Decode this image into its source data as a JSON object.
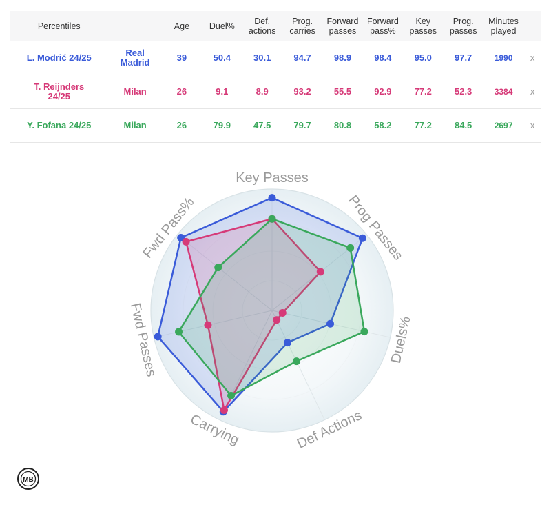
{
  "table": {
    "columns": [
      "Percentiles",
      "",
      "Age",
      "Duel%",
      "Def.\nactions",
      "Prog.\ncarries",
      "Forward\npasses",
      "Forward\npass%",
      "Key\npasses",
      "Prog.\npasses",
      "Minutes\nplayed"
    ],
    "rows": [
      {
        "player": "L. Modrić 24/25",
        "team": "Real\nMadrid",
        "age": "39",
        "duel": "50.4",
        "def_actions": "30.1",
        "prog_carries": "94.7",
        "fwd_passes": "98.9",
        "fwd_pass_pct": "98.4",
        "key_passes": "95.0",
        "prog_passes": "97.7",
        "minutes": "1990",
        "remove": "x",
        "color": "#3a5bd9"
      },
      {
        "player": "T. Reijnders\n24/25",
        "team": "Milan",
        "age": "26",
        "duel": "9.1",
        "def_actions": "8.9",
        "prog_carries": "93.2",
        "fwd_passes": "55.5",
        "fwd_pass_pct": "92.9",
        "key_passes": "77.2",
        "prog_passes": "52.3",
        "minutes": "3384",
        "remove": "x",
        "color": "#d63a78"
      },
      {
        "player": "Y. Fofana 24/25",
        "team": "Milan",
        "age": "26",
        "duel": "79.9",
        "def_actions": "47.5",
        "prog_carries": "79.7",
        "fwd_passes": "80.8",
        "fwd_pass_pct": "58.2",
        "key_passes": "77.2",
        "prog_passes": "84.5",
        "minutes": "2697",
        "remove": "x",
        "color": "#3aa85c"
      }
    ]
  },
  "chart_data": {
    "type": "radar",
    "axes": [
      "Key Passes",
      "Prog Passes",
      "Duels%",
      "Def Actions",
      "Carrying",
      "Fwd Passes",
      "Fwd Pass%"
    ],
    "range": [
      0,
      100
    ],
    "series": [
      {
        "name": "L. Modrić 24/25",
        "color": "#3a5bd9",
        "values": [
          95.0,
          97.7,
          50.4,
          30.1,
          94.7,
          98.9,
          98.4
        ]
      },
      {
        "name": "T. Reijnders 24/25",
        "color": "#d63a78",
        "values": [
          77.2,
          52.3,
          9.1,
          8.9,
          93.2,
          55.5,
          92.9
        ]
      },
      {
        "name": "Y. Fofana 24/25",
        "color": "#3aa85c",
        "values": [
          77.2,
          84.5,
          79.9,
          47.5,
          79.7,
          80.8,
          58.2
        ]
      }
    ]
  },
  "logo": {
    "text": "MB"
  }
}
